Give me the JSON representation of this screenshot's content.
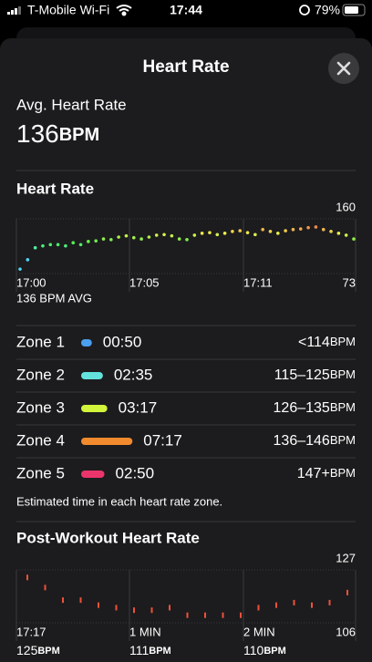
{
  "status_bar": {
    "carrier": "T-Mobile Wi-Fi",
    "time": "17:44",
    "battery": "79%"
  },
  "header": {
    "title": "Heart Rate"
  },
  "average": {
    "label": "Avg. Heart Rate",
    "value": 136,
    "unit": "BPM"
  },
  "heart_rate_chart": {
    "type": "scatter",
    "title": "Heart Rate",
    "values": [
      80,
      95,
      114,
      117,
      119,
      119,
      117,
      122,
      119,
      124,
      125,
      128,
      127,
      131,
      133,
      130,
      128,
      131,
      134,
      135,
      133,
      128,
      127,
      134,
      137,
      138,
      135,
      137,
      140,
      141,
      138,
      135,
      143,
      140,
      137,
      141,
      143,
      144,
      146,
      147,
      143,
      140,
      137,
      134,
      128
    ],
    "ylim": [
      73,
      160
    ],
    "yticks": [
      73,
      160
    ],
    "xlabels": [
      "17:00",
      "17:05",
      "17:11"
    ],
    "average_note": "136 BPM AVG"
  },
  "zones": [
    {
      "name": "Zone 1",
      "time": "00:50",
      "range": "<114",
      "unit": "BPM",
      "color": "#4b9ff0"
    },
    {
      "name": "Zone 2",
      "time": "02:35",
      "range": "115–125",
      "unit": "BPM",
      "color": "#63e3dc"
    },
    {
      "name": "Zone 3",
      "time": "03:17",
      "range": "126–135",
      "unit": "BPM",
      "color": "#d2f53c"
    },
    {
      "name": "Zone 4",
      "time": "07:17",
      "range": "136–146",
      "unit": "BPM",
      "color": "#f28a2e"
    },
    {
      "name": "Zone 5",
      "time": "02:50",
      "range": "147+",
      "unit": "BPM",
      "color": "#ea356c"
    }
  ],
  "zone_note": "Estimated time in each heart rate zone.",
  "post_workout_chart": {
    "type": "scatter",
    "title": "Post-Workout Heart Rate",
    "color": "#f0513a",
    "values": [
      124,
      120,
      115,
      115,
      113,
      112,
      111,
      111,
      112,
      109,
      109,
      109,
      109,
      112,
      113,
      114,
      113,
      114,
      118
    ],
    "ylim": [
      106,
      127
    ],
    "yticks": [
      106,
      127
    ],
    "xlabels": [
      "17:17",
      "1 MIN",
      "2 MIN"
    ],
    "summary": [
      {
        "value": 125,
        "unit": "BPM"
      },
      {
        "value": 111,
        "unit": "BPM"
      },
      {
        "value": 110,
        "unit": "BPM"
      }
    ]
  }
}
